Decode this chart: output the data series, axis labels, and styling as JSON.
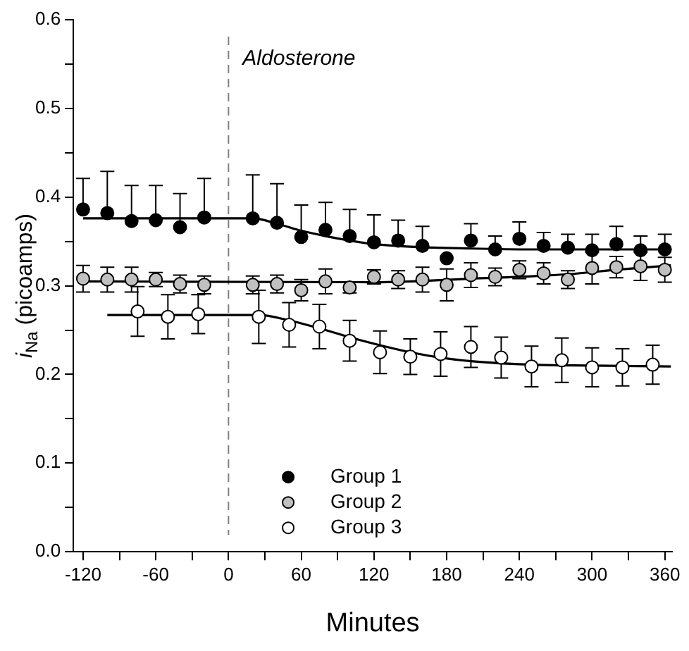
{
  "chart_data": {
    "type": "scatter",
    "xlabel": "Minutes",
    "ylabel": "i$_{Na}$ (picoamps)",
    "xlim": [
      -128,
      366
    ],
    "xticks": [
      -120,
      {
        "value": -90,
        "label": null
      },
      -60,
      {
        "value": -30,
        "label": null
      },
      0,
      {
        "value": 30,
        "label": null
      },
      60,
      {
        "value": 90,
        "label": null
      },
      120,
      {
        "value": 150,
        "label": null
      },
      180,
      {
        "value": 210,
        "label": null
      },
      240,
      {
        "value": 270,
        "label": null
      },
      300,
      {
        "value": 330,
        "label": null
      },
      360
    ],
    "ylim": [
      0,
      0.6
    ],
    "yticks": [
      {
        "value": 0,
        "label": "0.0"
      },
      {
        "value": 0.05,
        "label": null
      },
      0.1,
      {
        "value": 0.15,
        "label": null
      },
      0.2,
      {
        "value": 0.25,
        "label": null
      },
      0.3,
      {
        "value": 0.35,
        "label": null
      },
      0.4,
      {
        "value": 0.45,
        "label": null
      },
      0.5,
      {
        "value": 0.55,
        "label": null
      },
      0.6
    ],
    "grid": false,
    "legend": "bottom",
    "marker": "circle",
    "ref_lines": [
      {
        "axis": "x",
        "value": 0,
        "label": "Aldosterone",
        "color": "#808080",
        "line_style": "dashed"
      }
    ],
    "series": [
      {
        "name": "Group 1",
        "color": "#000000",
        "x": [
          -120,
          -100,
          -80,
          -60,
          -40,
          -20,
          20,
          40,
          60,
          80,
          100,
          120,
          140,
          160,
          180,
          200,
          220,
          240,
          260,
          280,
          300,
          320,
          340,
          360
        ],
        "values": [
          0.386,
          0.382,
          0.373,
          0.374,
          0.366,
          0.377,
          0.376,
          0.371,
          0.355,
          0.363,
          0.356,
          0.349,
          0.351,
          0.345,
          0.331,
          0.351,
          0.341,
          0.353,
          0.345,
          0.343,
          0.34,
          0.347,
          0.34,
          0.341
        ],
        "errors": [
          [
            0.386,
            0.421
          ],
          [
            0.382,
            0.429
          ],
          [
            0.373,
            0.413
          ],
          [
            0.374,
            0.413
          ],
          [
            0.366,
            0.404
          ],
          [
            0.377,
            0.421
          ],
          [
            0.376,
            0.425
          ],
          [
            0.371,
            0.415
          ],
          [
            0.355,
            0.391
          ],
          [
            0.363,
            0.394
          ],
          [
            0.356,
            0.386
          ],
          [
            0.349,
            0.38
          ],
          [
            0.351,
            0.374
          ],
          [
            0.345,
            0.367
          ],
          null,
          [
            0.351,
            0.37
          ],
          [
            0.341,
            0.356
          ],
          [
            0.353,
            0.372
          ],
          [
            0.345,
            0.36
          ],
          [
            0.343,
            0.358
          ],
          [
            0.34,
            0.358
          ],
          [
            0.347,
            0.367
          ],
          [
            0.34,
            0.356
          ],
          [
            0.341,
            0.358
          ]
        ]
      },
      {
        "name": "Group 2",
        "color": "#c0c0c0",
        "x": [
          -120,
          -100,
          -80,
          -60,
          -40,
          -20,
          20,
          40,
          60,
          80,
          100,
          120,
          140,
          160,
          180,
          200,
          220,
          240,
          260,
          280,
          300,
          320,
          340,
          360
        ],
        "values": [
          0.308,
          0.307,
          0.307,
          0.307,
          0.302,
          0.301,
          0.301,
          0.302,
          0.295,
          0.305,
          0.298,
          0.31,
          0.307,
          0.307,
          0.301,
          0.312,
          0.31,
          0.318,
          0.314,
          0.307,
          0.32,
          0.321,
          0.322,
          0.318
        ],
        "errors": [
          0.015,
          0.014,
          0.014,
          0.008,
          0.01,
          0.01,
          0.01,
          0.01,
          0.012,
          0.014,
          0.006,
          0.008,
          0.01,
          0.014,
          0.018,
          0.014,
          0.01,
          0.01,
          0.012,
          0.01,
          0.018,
          0.012,
          0.016,
          0.014
        ]
      },
      {
        "name": "Group 3",
        "color": "#ffffff",
        "x": [
          -75,
          -50,
          -25,
          25,
          50,
          75,
          100,
          125,
          150,
          175,
          200,
          225,
          250,
          275,
          300,
          325,
          350
        ],
        "values": [
          0.271,
          0.265,
          0.268,
          0.265,
          0.256,
          0.254,
          0.238,
          0.225,
          0.22,
          0.223,
          0.231,
          0.219,
          0.209,
          0.216,
          0.208,
          0.208,
          0.211
        ],
        "errors": [
          0.028,
          0.025,
          0.022,
          0.03,
          0.025,
          0.025,
          0.023,
          0.024,
          0.02,
          0.025,
          0.023,
          0.023,
          0.023,
          0.025,
          0.022,
          0.021,
          0.022
        ]
      },
      {
        "type": "line",
        "marker": "none",
        "color": "#000000",
        "x": [
          -120,
          20,
          40,
          60,
          80,
          100,
          120,
          150,
          200,
          250,
          365
        ],
        "values": [
          0.376,
          0.376,
          0.37,
          0.362,
          0.356,
          0.351,
          0.347,
          0.344,
          0.342,
          0.341,
          0.341
        ]
      },
      {
        "type": "line",
        "marker": "none",
        "color": "#000000",
        "x": [
          -120,
          120,
          200,
          280,
          320,
          365
        ],
        "values": [
          0.305,
          0.304,
          0.308,
          0.313,
          0.318,
          0.323
        ]
      },
      {
        "type": "line",
        "marker": "none",
        "color": "#000000",
        "x": [
          -100,
          25,
          50,
          75,
          100,
          125,
          150,
          175,
          200,
          250,
          300,
          365
        ],
        "values": [
          0.267,
          0.267,
          0.261,
          0.252,
          0.242,
          0.233,
          0.225,
          0.219,
          0.215,
          0.211,
          0.21,
          0.209
        ]
      }
    ]
  }
}
